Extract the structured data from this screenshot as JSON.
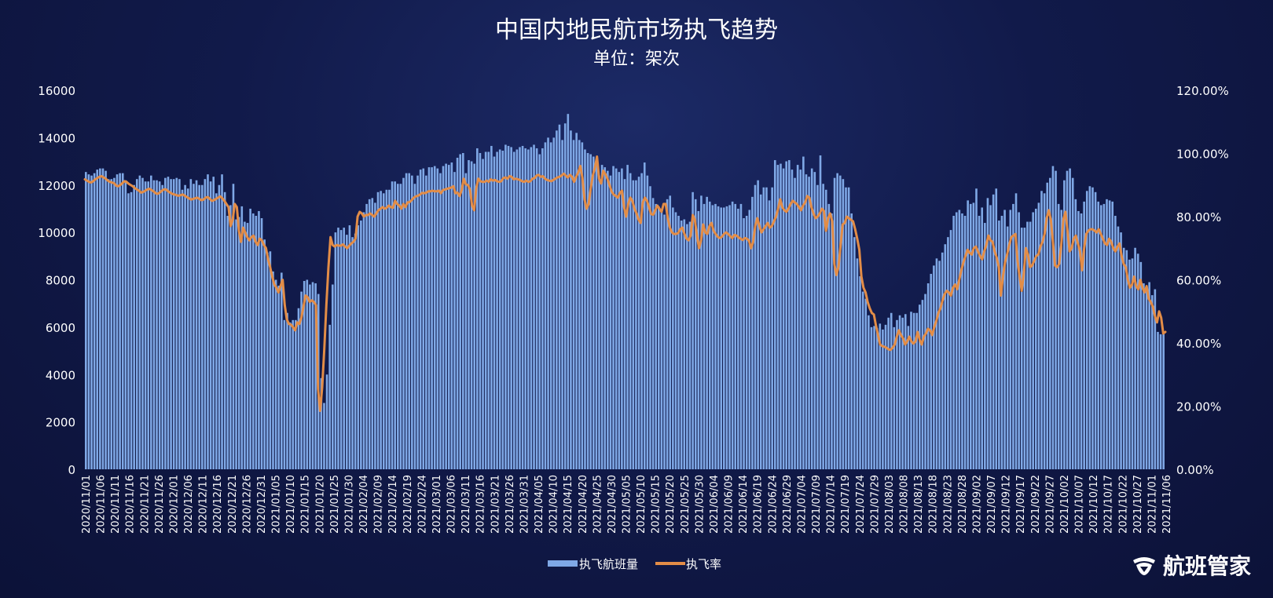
{
  "chart_data": {
    "type": "bar+line",
    "title": "中国内地民航市场执飞趋势",
    "subtitle": "单位：架次",
    "left_axis": {
      "min": 0,
      "max": 16000,
      "ticks": [
        "0",
        "2000",
        "4000",
        "6000",
        "8000",
        "10000",
        "12000",
        "14000",
        "16000"
      ]
    },
    "right_axis": {
      "min": 0,
      "max": 120,
      "ticks": [
        "0.00%",
        "20.00%",
        "40.00%",
        "60.00%",
        "80.00%",
        "100.00%",
        "120.00%"
      ]
    },
    "x_axis": {
      "start": "2020-11-01",
      "end": "2021-11-06",
      "label_every_days": 5
    },
    "x_ticks": [
      "2020/11/01",
      "2020/11/06",
      "2020/11/11",
      "2020/11/16",
      "2020/11/21",
      "2020/11/26",
      "2020/12/01",
      "2020/12/06",
      "2020/12/11",
      "2020/12/16",
      "2020/12/21",
      "2020/12/26",
      "2020/12/31",
      "2021/01/05",
      "2021/01/10",
      "2021/01/15",
      "2021/01/20",
      "2021/01/25",
      "2021/01/30",
      "2021/02/04",
      "2021/02/09",
      "2021/02/14",
      "2021/02/19",
      "2021/02/24",
      "2021/03/01",
      "2021/03/06",
      "2021/03/11",
      "2021/03/16",
      "2021/03/21",
      "2021/03/26",
      "2021/03/31",
      "2021/04/05",
      "2021/04/10",
      "2021/04/15",
      "2021/04/20",
      "2021/04/25",
      "2021/04/30",
      "2021/05/05",
      "2021/05/10",
      "2021/05/15",
      "2021/05/20",
      "2021/05/25",
      "2021/05/30",
      "2021/06/04",
      "2021/06/09",
      "2021/06/14",
      "2021/06/19",
      "2021/06/24",
      "2021/06/29",
      "2021/07/04",
      "2021/07/09",
      "2021/07/14",
      "2021/07/19",
      "2021/07/24",
      "2021/07/29",
      "2021/08/03",
      "2021/08/08",
      "2021/08/13",
      "2021/08/18",
      "2021/08/23",
      "2021/08/28",
      "2021/09/02",
      "2021/09/07",
      "2021/09/12",
      "2021/09/17",
      "2021/09/22",
      "2021/09/27",
      "2021/10/02",
      "2021/10/07",
      "2021/10/12",
      "2021/10/17",
      "2021/10/22",
      "2021/10/27",
      "2021/11/01",
      "2021/11/06"
    ],
    "series": [
      {
        "name": "执飞航班量",
        "kind": "bar",
        "axis": "left",
        "color": "#7fa8e6",
        "values": [
          12550,
          12450,
          12400,
          12500,
          12650,
          12700,
          12700,
          12600,
          12250,
          12250,
          12300,
          12450,
          12500,
          12500,
          12200,
          11650,
          11700,
          12000,
          12250,
          12400,
          12300,
          12150,
          12150,
          12400,
          12200,
          12200,
          12150,
          12000,
          12300,
          12350,
          12250,
          12250,
          12300,
          12250,
          11800,
          12000,
          11850,
          12250,
          12050,
          12200,
          12000,
          12000,
          12250,
          12450,
          12150,
          12350,
          11650,
          12000,
          12450,
          11700,
          10700,
          11150,
          12050,
          10550,
          10650,
          11100,
          10450,
          10400,
          11000,
          10800,
          10700,
          10900,
          10600,
          9700,
          9150,
          9200,
          8350,
          8000,
          7750,
          8300,
          6300,
          6600,
          6200,
          6300,
          6300,
          6800,
          7500,
          7950,
          8000,
          7800,
          7900,
          7850,
          7400,
          3850,
          2800,
          4000,
          6100,
          7800,
          10000,
          10200,
          10100,
          10200,
          9900,
          10300,
          9800,
          9950,
          10300,
          10500,
          10850,
          11200,
          11400,
          11450,
          11250,
          11700,
          11750,
          11650,
          11800,
          11800,
          12150,
          12150,
          12050,
          12050,
          12300,
          12500,
          12500,
          12400,
          12050,
          12400,
          12650,
          12700,
          12400,
          12750,
          12750,
          12800,
          12700,
          12500,
          12800,
          12900,
          12850,
          12950,
          12550,
          13150,
          13300,
          13350,
          12500,
          13050,
          13000,
          12900,
          13550,
          13350,
          13100,
          13400,
          13400,
          13650,
          13200,
          13400,
          13500,
          13450,
          13700,
          13650,
          13600,
          13400,
          13500,
          13600,
          13650,
          13550,
          13500,
          13600,
          13700,
          13550,
          13300,
          13550,
          13800,
          14000,
          13800,
          14000,
          14300,
          14550,
          13900,
          14600,
          15000,
          14300,
          13900,
          14200,
          13900,
          13800,
          13500,
          13350,
          13300,
          13200,
          12900,
          12400,
          12850,
          12750,
          12600,
          12400,
          12800,
          12700,
          12550,
          12700,
          12250,
          12850,
          12500,
          12200,
          12200,
          12350,
          12500,
          12950,
          12400,
          11950,
          11450,
          11200,
          11100,
          10950,
          10750,
          11400,
          11550,
          11050,
          10850,
          10700,
          10500,
          10550,
          10350,
          10450,
          11700,
          11400,
          10900,
          11550,
          11200,
          11500,
          11300,
          11150,
          11200,
          11100,
          11050,
          11050,
          11100,
          11150,
          11300,
          11200,
          11000,
          11200,
          10600,
          10700,
          10950,
          11500,
          12000,
          12200,
          11600,
          11900,
          11900,
          11350,
          11900,
          13050,
          12850,
          12900,
          12700,
          13000,
          13050,
          12650,
          12300,
          12850,
          12650,
          13200,
          12450,
          12350,
          12700,
          12550,
          12000,
          13250,
          12050,
          11800,
          11200,
          10800,
          12300,
          12500,
          12400,
          12250,
          11900,
          11900,
          10800,
          9800,
          8900,
          8150,
          7500,
          7200,
          6500,
          6000,
          6050,
          5950,
          6150,
          5900,
          6100,
          6400,
          6600,
          6000,
          6300,
          6500,
          6400,
          6550,
          6050,
          6650,
          6600,
          6600,
          6950,
          7150,
          7400,
          7850,
          8250,
          8600,
          8900,
          8800,
          9150,
          9500,
          9800,
          10100,
          10700,
          10850,
          10950,
          10800,
          10700,
          11350,
          11200,
          11250,
          11850,
          10700,
          11050,
          10400,
          11450,
          11150,
          11600,
          11850,
          10500,
          10700,
          10950,
          10250,
          10950,
          11200,
          11650,
          10850,
          10200,
          10200,
          10450,
          10450,
          10850,
          11000,
          11250,
          11750,
          11650,
          12100,
          12300,
          12800,
          12600,
          11200,
          10950,
          12200,
          12600,
          12700,
          12300,
          11400,
          10900,
          10800,
          11300,
          11750,
          11950,
          11900,
          11700,
          11300,
          11150,
          11200,
          11400,
          11350,
          11300,
          10700,
          10250,
          10000,
          9350,
          9250,
          8850,
          8900,
          9350,
          9100,
          8750,
          7850,
          7600,
          7900,
          7350,
          7600,
          5800,
          5700,
          5700
        ]
      },
      {
        "name": "执飞率",
        "kind": "line",
        "axis": "right",
        "color": "#e38d47",
        "values": [
          91.8,
          91.4,
          91.0,
          90.8,
          91.2,
          91.8,
          92.2,
          92.6,
          92.8,
          92.4,
          92.0,
          91.4,
          91.0,
          90.8,
          90.6,
          89.8,
          89.6,
          90.0,
          90.6,
          91.2,
          91.0,
          90.4,
          90.0,
          89.6,
          89.0,
          88.6,
          88.2,
          87.6,
          87.8,
          88.2,
          88.6,
          88.8,
          88.4,
          88.0,
          87.4,
          87.2,
          87.6,
          88.2,
          88.6,
          88.6,
          88.0,
          87.6,
          87.2,
          87.0,
          86.8,
          86.6,
          86.8,
          87.0,
          86.6,
          86.2,
          85.8,
          85.4,
          85.6,
          85.8,
          86.0,
          85.6,
          85.2,
          85.4,
          86.0,
          86.2,
          85.6,
          85.0,
          85.2,
          85.6,
          86.0,
          86.4,
          85.8,
          85.0,
          84.0,
          83.0,
          77.0,
          79.0,
          84.0,
          83.0,
          75.5,
          72.0,
          76.5,
          75.0,
          73.5,
          72.5,
          73.5,
          74.0,
          72.0,
          71.0,
          73.0,
          72.5,
          71.0,
          70.0,
          66.5,
          64.0,
          61.0,
          58.5,
          57.5,
          56.0,
          58.0,
          60.0,
          52.0,
          47.5,
          46.0,
          45.8,
          45.0,
          44.0,
          46.5,
          46.0,
          48.0,
          51.5,
          55.0,
          54.5,
          53.0,
          53.5,
          53.0,
          52.0,
          25.5,
          18.5,
          26.0,
          38.0,
          52.0,
          64.0,
          73.5,
          71.0,
          70.5,
          71.0,
          70.8,
          70.8,
          71.2,
          70.5,
          70.0,
          70.8,
          71.5,
          72.0,
          73.0,
          80.0,
          81.5,
          81.0,
          80.0,
          80.5,
          80.5,
          81.0,
          80.5,
          80.0,
          81.0,
          82.0,
          82.5,
          83.0,
          82.5,
          82.8,
          83.5,
          83.0,
          82.8,
          85.0,
          84.0,
          83.5,
          82.5,
          84.0,
          83.0,
          84.5,
          84.6,
          85.2,
          86.0,
          86.4,
          86.6,
          87.0,
          87.5,
          87.4,
          87.6,
          88.0,
          88.0,
          88.2,
          88.0,
          88.0,
          88.2,
          87.4,
          88.4,
          88.6,
          88.8,
          89.0,
          89.2,
          89.6,
          87.4,
          87.6,
          86.5,
          88.4,
          92.0,
          90.2,
          90.0,
          88.5,
          83.5,
          82.0,
          89.0,
          92.0,
          91.2,
          91.0,
          91.0,
          91.4,
          91.0,
          91.8,
          91.4,
          91.6,
          91.2,
          91.0,
          91.2,
          92.2,
          92.4,
          92.0,
          92.8,
          92.6,
          91.8,
          92.0,
          91.8,
          91.6,
          91.2,
          91.0,
          91.4,
          91.0,
          91.2,
          92.0,
          92.2,
          93.0,
          93.2,
          92.6,
          92.8,
          92.0,
          91.6,
          91.4,
          91.2,
          91.6,
          92.0,
          92.4,
          92.6,
          93.0,
          93.6,
          93.0,
          92.4,
          93.2,
          92.6,
          91.0,
          92.6,
          94.0,
          96.0,
          92.2,
          85.5,
          82.5,
          84.0,
          89.0,
          93.0,
          95.5,
          99.0,
          92.0,
          90.5,
          94.5,
          93.5,
          92.0,
          90.0,
          88.0,
          87.0,
          86.5,
          86.0,
          87.5,
          88.2,
          83.0,
          80.0,
          84.0,
          86.0,
          85.0,
          82.5,
          81.0,
          79.0,
          78.0,
          84.5,
          86.0,
          85.0,
          83.0,
          80.8,
          80.6,
          82.0,
          83.5,
          82.5,
          81.5,
          84.0,
          84.0,
          79.5,
          76.5,
          75.0,
          74.5,
          74.5,
          74.8,
          76.0,
          76.5,
          74.5,
          73.0,
          72.5,
          74.0,
          80.5,
          79.0,
          74.0,
          70.0,
          72.5,
          77.5,
          75.0,
          74.5,
          77.0,
          78.0,
          75.5,
          74.5,
          73.6,
          73.2,
          73.6,
          74.5,
          75.0,
          74.5,
          73.8,
          73.2,
          74.2,
          74.0,
          73.4,
          73.0,
          72.6,
          73.2,
          73.0,
          72.4,
          70.0,
          72.0,
          77.0,
          79.5,
          77.0,
          75.0,
          76.0,
          77.0,
          78.0,
          76.5,
          77.0,
          78.5,
          80.0,
          82.5,
          85.5,
          83.0,
          82.0,
          81.5,
          82.5,
          84.0,
          85.0,
          84.5,
          84.0,
          83.0,
          82.0,
          83.5,
          84.5,
          86.5,
          86.0,
          83.0,
          81.0,
          79.5,
          80.0,
          81.0,
          82.5,
          81.8,
          75.5,
          79.5,
          81.0,
          78.5,
          65.0,
          61.5,
          64.0,
          71.0,
          77.5,
          78.0,
          80.0,
          79.5,
          79.0,
          78.5,
          76.0,
          73.0,
          69.5,
          61.0,
          57.5,
          56.0,
          53.0,
          51.0,
          49.5,
          49.0,
          45.5,
          42.5,
          39.5,
          39.0,
          38.8,
          38.5,
          38.0,
          37.8,
          38.5,
          39.5,
          42.0,
          44.0,
          42.5,
          41.5,
          39.5,
          40.5,
          42.0,
          40.5,
          39.8,
          40.5,
          43.5,
          41.0,
          39.5,
          42.0,
          43.0,
          44.5,
          44.0,
          42.5,
          45.0,
          47.0,
          49.5,
          51.0,
          53.5,
          55.5,
          56.5,
          56.0,
          55.0,
          57.5,
          58.5,
          57.0,
          60.0,
          63.0,
          65.5,
          67.5,
          69.5,
          68.5,
          68.0,
          70.0,
          70.5,
          69.0,
          67.5,
          66.5,
          69.0,
          71.0,
          74.0,
          72.5,
          72.0,
          69.0,
          67.0,
          64.0,
          55.0,
          61.0,
          65.5,
          68.0,
          71.0,
          73.5,
          74.0,
          74.5,
          66.0,
          61.0,
          56.5,
          62.0,
          70.0,
          68.0,
          64.0,
          64.5,
          66.0,
          67.5,
          68.0,
          70.5,
          72.0,
          74.5,
          79.5,
          82.0,
          79.0,
          72.0,
          64.5,
          64.0,
          65.0,
          71.0,
          79.0,
          81.5,
          75.5,
          69.0,
          70.0,
          73.0,
          74.0,
          71.5,
          69.0,
          63.0,
          70.0,
          74.5,
          75.5,
          76.0,
          76.0,
          75.5,
          75.0,
          76.0,
          74.5,
          73.0,
          71.5,
          71.0,
          73.0,
          72.0,
          70.0,
          69.0,
          70.5,
          71.5,
          67.5,
          65.0,
          64.0,
          60.0,
          57.5,
          58.5,
          61.0,
          58.0,
          57.0,
          60.0,
          57.5,
          56.0,
          58.0,
          54.0,
          53.0,
          51.5,
          48.5,
          46.5,
          50.0,
          48.0,
          43.0,
          43.5
        ]
      }
    ],
    "legend": {
      "position": "bottom-center",
      "items": [
        "执飞航班量",
        "执飞率"
      ]
    },
    "grid": false
  },
  "brand": {
    "name": "航班管家",
    "logo_icon": "airplane-shield-icon"
  },
  "colors": {
    "bar": "#7fa8e6",
    "line": "#e38d47",
    "text": "#ffffff"
  }
}
